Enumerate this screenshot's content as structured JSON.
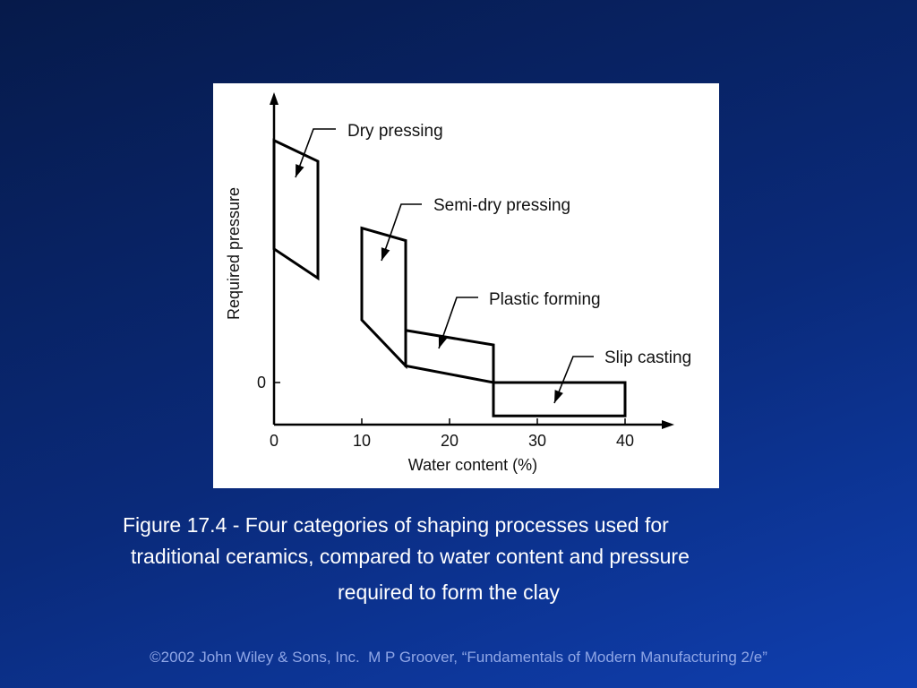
{
  "slide": {
    "caption_lines": [
      "Figure 17.4 - Four categories of shaping processes used for",
      "traditional ceramics, compared to water content and pressure",
      "required to form the clay"
    ],
    "footer": "©2002 John Wiley & Sons, Inc.  M P Groover, “Fundamentals of Modern Manufacturing 2/e”"
  },
  "chart_data": {
    "type": "area",
    "xlabel": "Water content (%)",
    "ylabel": "Required pressure",
    "x_ticks": [
      0,
      10,
      20,
      30,
      40
    ],
    "y_ticks": [
      {
        "value": 0,
        "label": "0"
      }
    ],
    "xlim": [
      0,
      45
    ],
    "ylim": [
      -1,
      6.5
    ],
    "grid": false,
    "regions": [
      {
        "name": "Dry pressing",
        "polygon": [
          [
            0,
            5.8
          ],
          [
            5,
            5.3
          ],
          [
            5,
            2.5
          ],
          [
            0,
            3.2
          ]
        ]
      },
      {
        "name": "Semi-dry pressing",
        "polygon": [
          [
            10,
            3.7
          ],
          [
            15,
            3.4
          ],
          [
            15,
            0.4
          ],
          [
            10,
            1.5
          ]
        ]
      },
      {
        "name": "Plastic forming",
        "polygon": [
          [
            15,
            1.25
          ],
          [
            25,
            0.9
          ],
          [
            25,
            0
          ],
          [
            15,
            0.4
          ]
        ]
      },
      {
        "name": "Slip casting",
        "polygon": [
          [
            25,
            0
          ],
          [
            40,
            0
          ],
          [
            40,
            -0.8
          ],
          [
            25,
            -0.8
          ]
        ]
      }
    ]
  }
}
